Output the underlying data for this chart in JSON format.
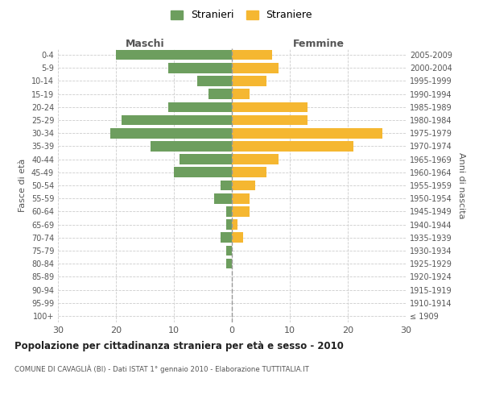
{
  "age_groups": [
    "100+",
    "95-99",
    "90-94",
    "85-89",
    "80-84",
    "75-79",
    "70-74",
    "65-69",
    "60-64",
    "55-59",
    "50-54",
    "45-49",
    "40-44",
    "35-39",
    "30-34",
    "25-29",
    "20-24",
    "15-19",
    "10-14",
    "5-9",
    "0-4"
  ],
  "birth_years": [
    "≤ 1909",
    "1910-1914",
    "1915-1919",
    "1920-1924",
    "1925-1929",
    "1930-1934",
    "1935-1939",
    "1940-1944",
    "1945-1949",
    "1950-1954",
    "1955-1959",
    "1960-1964",
    "1965-1969",
    "1970-1974",
    "1975-1979",
    "1980-1984",
    "1985-1989",
    "1990-1994",
    "1995-1999",
    "2000-2004",
    "2005-2009"
  ],
  "males": [
    0,
    0,
    0,
    0,
    1,
    1,
    2,
    1,
    1,
    3,
    2,
    10,
    9,
    14,
    21,
    19,
    11,
    4,
    6,
    11,
    20
  ],
  "females": [
    0,
    0,
    0,
    0,
    0,
    0,
    2,
    1,
    3,
    3,
    4,
    6,
    8,
    21,
    26,
    13,
    13,
    3,
    6,
    8,
    7
  ],
  "male_color": "#6d9e5e",
  "female_color": "#f5b731",
  "background_color": "#ffffff",
  "grid_color": "#cccccc",
  "title": "Popolazione per cittadinanza straniera per età e sesso - 2010",
  "subtitle": "COMUNE DI CAVAGLIÀ (BI) - Dati ISTAT 1° gennaio 2010 - Elaborazione TUTTITALIA.IT",
  "xlabel_left": "Maschi",
  "xlabel_right": "Femmine",
  "ylabel_left": "Fasce di età",
  "ylabel_right": "Anni di nascita",
  "xlim": 30,
  "legend_labels": [
    "Stranieri",
    "Straniere"
  ]
}
